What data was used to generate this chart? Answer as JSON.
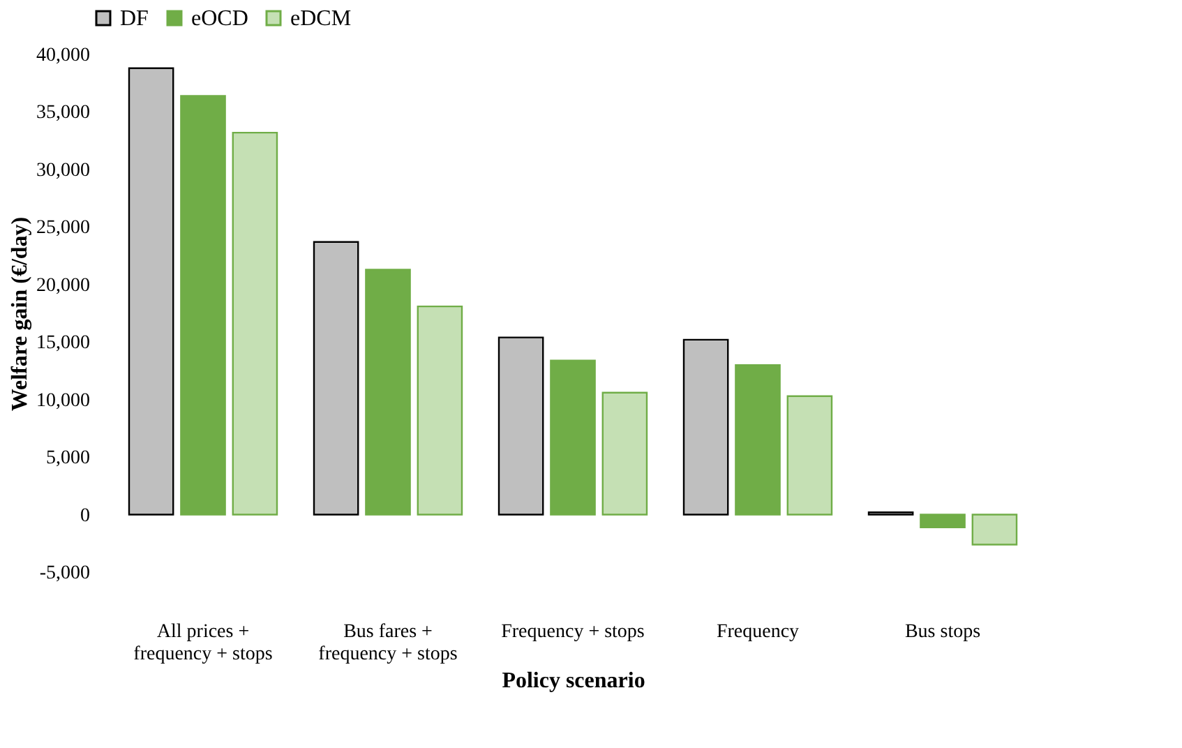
{
  "chart_data": {
    "type": "bar",
    "xlabel": "Policy scenario",
    "ylabel": "Welfare gain (€/day)",
    "categories": [
      "All prices +\nfrequency + stops",
      "Bus fares +\nfrequency + stops",
      "Frequency + stops",
      "Frequency",
      "Bus stops"
    ],
    "series": [
      {
        "name": "DF",
        "color": "#bfbfbf",
        "values": [
          38800,
          23700,
          15400,
          15200,
          200
        ]
      },
      {
        "name": "eOCD",
        "color": "#70ad47",
        "values": [
          36400,
          21300,
          13400,
          13000,
          -1100
        ]
      },
      {
        "name": "eDCM",
        "color": "#c5e0b4",
        "values": [
          33200,
          18100,
          10600,
          10300,
          -2600
        ]
      }
    ],
    "ylim": [
      -5000,
      40000
    ],
    "yticks": [
      {
        "value": -5000,
        "label": "-5,000"
      },
      0,
      {
        "value": 5000,
        "label": "5,000"
      },
      {
        "value": 10000,
        "label": "10,000"
      },
      {
        "value": 15000,
        "label": "15,000"
      },
      {
        "value": 20000,
        "label": "20,000"
      },
      {
        "value": 25000,
        "label": "25,000"
      },
      {
        "value": 30000,
        "label": "30,000"
      },
      {
        "value": 35000,
        "label": "35,000"
      },
      {
        "value": 40000,
        "label": "40,000"
      }
    ],
    "grid": false,
    "legend": "top"
  }
}
